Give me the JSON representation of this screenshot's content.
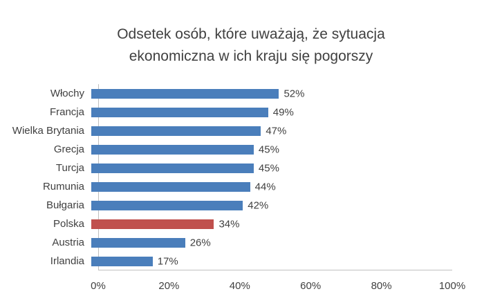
{
  "chart": {
    "title_lines": [
      "Odsetek osób, które uważają, że sytuacja",
      "ekonomiczna w ich kraju się pogorszy"
    ]
  },
  "chart_data": {
    "type": "bar",
    "orientation": "horizontal",
    "title": "Odsetek osób, które uważają, że sytuacja ekonomiczna w ich kraju się pogorszy",
    "categories": [
      "Włochy",
      "Francja",
      "Wielka Brytania",
      "Grecja",
      "Turcja",
      "Rumunia",
      "Bułgaria",
      "Polska",
      "Austria",
      "Irlandia"
    ],
    "values": [
      52,
      49,
      47,
      45,
      45,
      44,
      42,
      34,
      26,
      17
    ],
    "value_labels": [
      "52%",
      "49%",
      "47%",
      "45%",
      "45%",
      "44%",
      "42%",
      "34%",
      "26%",
      "17%"
    ],
    "highlight_category": "Polska",
    "colors": {
      "bar": "#4a7ebb",
      "highlight": "#c0504d",
      "text": "#404040",
      "axis_line": "#bfbfbf"
    },
    "xlabel": "",
    "ylabel": "",
    "xlim": [
      0,
      100
    ],
    "x_ticks": [
      "0%",
      "20%",
      "40%",
      "60%",
      "80%",
      "100%"
    ],
    "grid": false,
    "legend": false
  }
}
